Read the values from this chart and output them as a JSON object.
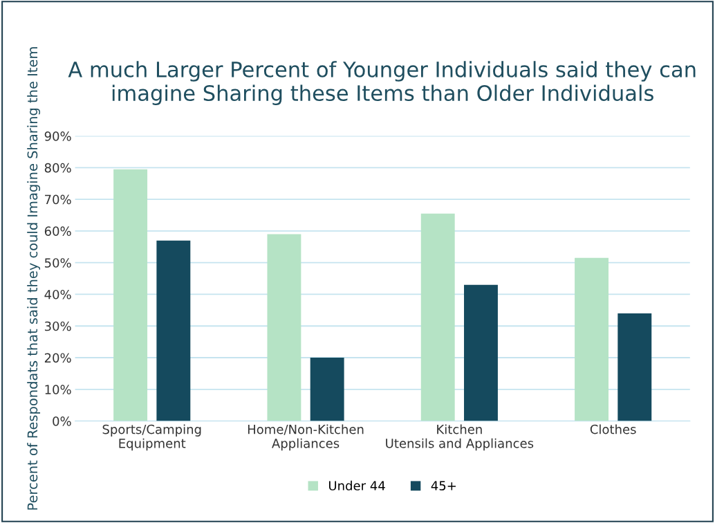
{
  "chart_data": {
    "type": "bar",
    "title": "A much Larger Percent of Younger Individuals said they can imagine Sharing these Items than Older Individuals",
    "ylabel": "Percent of Respondats that said they could Imagine Sharing the Item",
    "categories": [
      "Sports/Camping Equipment",
      "Home/Non-Kitchen Appliances",
      "Kitchen Utensils and Appliances",
      "Clothes"
    ],
    "series": [
      {
        "name": "Under 44",
        "color": "#b5e3c5",
        "values": [
          79.5,
          59,
          65.5,
          51.5
        ]
      },
      {
        "name": "45+",
        "color": "#154a5e",
        "values": [
          57,
          20,
          43,
          34
        ]
      }
    ],
    "ylim": [
      0,
      90
    ],
    "yticks": [
      {
        "value": 0,
        "label": "0%"
      },
      {
        "value": 10,
        "label": "10%"
      },
      {
        "value": 20,
        "label": "20%"
      },
      {
        "value": 30,
        "label": "30%"
      },
      {
        "value": 40,
        "label": "40%"
      },
      {
        "value": 50,
        "label": "50%"
      },
      {
        "value": 60,
        "label": "60%"
      },
      {
        "value": 70,
        "label": "70%"
      },
      {
        "value": 80,
        "label": "80%"
      },
      {
        "value": 90,
        "label": "90%"
      }
    ],
    "grid": "y",
    "legend": "bottom"
  }
}
